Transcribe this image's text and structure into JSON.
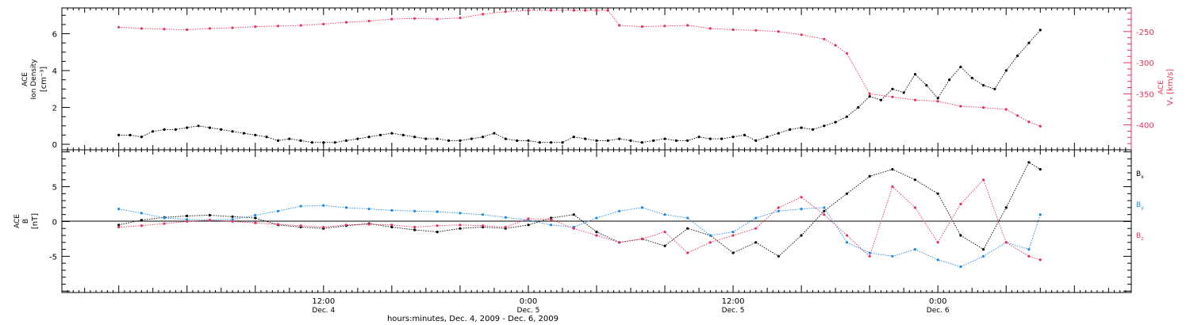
{
  "colors": {
    "black": "#000000",
    "red": "#e8315b",
    "blue": "#1e88e5"
  },
  "chart_data": [
    {
      "type": "scatter",
      "panel": "top",
      "left_axis": {
        "label_lines": [
          "ACE",
          "Ion Density",
          "[cm⁻³]"
        ],
        "ticks": [
          "0",
          "2",
          "4",
          "6"
        ],
        "ylim": [
          -0.3,
          7.4
        ]
      },
      "right_axis": {
        "label_lines": [
          "ACE",
          "Vₓ [km/s]"
        ],
        "ticks": [
          "-250",
          "-300",
          "-350",
          "-400"
        ],
        "ylim": [
          -440,
          -212
        ]
      },
      "series": [
        {
          "color": "#000000",
          "axis": "left",
          "x": [
            0,
            2,
            4,
            6,
            8,
            10,
            12,
            14,
            16,
            18,
            20,
            22,
            24,
            26,
            28,
            30,
            32,
            34,
            36,
            38,
            40,
            42,
            44,
            46,
            48,
            50,
            52,
            54,
            56,
            58,
            60,
            62,
            64,
            66,
            68,
            70,
            72,
            74,
            76,
            78,
            80,
            82,
            84,
            86,
            88,
            90,
            92,
            94,
            96,
            98,
            100,
            102,
            104,
            106,
            108,
            110,
            112,
            114,
            116,
            118,
            120,
            122,
            124,
            126,
            128,
            130,
            132,
            134,
            136,
            138,
            140,
            142,
            144,
            146,
            148,
            150,
            152,
            154,
            156,
            158,
            160,
            162
          ],
          "y": [
            0.5,
            0.5,
            0.4,
            0.7,
            0.8,
            0.8,
            0.9,
            1.0,
            0.9,
            0.8,
            0.7,
            0.6,
            0.5,
            0.4,
            0.2,
            0.3,
            0.2,
            0.1,
            0.1,
            0.1,
            0.2,
            0.3,
            0.4,
            0.5,
            0.6,
            0.5,
            0.4,
            0.3,
            0.3,
            0.2,
            0.2,
            0.3,
            0.4,
            0.6,
            0.3,
            0.2,
            0.2,
            0.1,
            0.1,
            0.1,
            0.4,
            0.3,
            0.2,
            0.2,
            0.3,
            0.2,
            0.1,
            0.2,
            0.3,
            0.2,
            0.2,
            0.4,
            0.3,
            0.3,
            0.4,
            0.5,
            0.2,
            0.4,
            0.6,
            0.8,
            0.9,
            0.8,
            1.0,
            1.2,
            1.5,
            2.0,
            2.6,
            2.4,
            3.0,
            2.8,
            3.8,
            3.2,
            2.5,
            3.5,
            4.2,
            3.6,
            3.2,
            3.0,
            4.0,
            4.8,
            5.5,
            6.2
          ]
        },
        {
          "color": "#e8315b",
          "axis": "right",
          "x": [
            0,
            4,
            8,
            12,
            16,
            20,
            24,
            28,
            32,
            36,
            40,
            44,
            48,
            52,
            56,
            60,
            64,
            68,
            72,
            76,
            80,
            82,
            84,
            86,
            88,
            92,
            96,
            100,
            104,
            108,
            112,
            116,
            120,
            124,
            126,
            128,
            132,
            136,
            140,
            144,
            148,
            152,
            156,
            158,
            160,
            162
          ],
          "y": [
            -243,
            -245,
            -246,
            -247,
            -245,
            -244,
            -242,
            -241,
            -240,
            -238,
            -235,
            -233,
            -230,
            -229,
            -230,
            -228,
            -222,
            -218,
            -216,
            -216,
            -216,
            -216,
            -216,
            -216,
            -240,
            -242,
            -241,
            -240,
            -245,
            -247,
            -248,
            -250,
            -255,
            -262,
            -272,
            -285,
            -350,
            -355,
            -360,
            -362,
            -370,
            -372,
            -375,
            -385,
            -395,
            -402
          ]
        }
      ]
    },
    {
      "type": "scatter",
      "panel": "bottom",
      "left_axis": {
        "label_lines": [
          "ACE",
          "B",
          "[nT]"
        ],
        "ticks": [
          "-5",
          "0",
          "5"
        ],
        "ylim": [
          -10.2,
          10.3
        ]
      },
      "series": [
        {
          "name": "Bx",
          "color": "#000000",
          "x": [
            0,
            4,
            8,
            12,
            16,
            20,
            24,
            28,
            32,
            36,
            40,
            44,
            48,
            52,
            56,
            60,
            64,
            68,
            72,
            76,
            80,
            84,
            88,
            92,
            96,
            100,
            104,
            108,
            112,
            116,
            120,
            124,
            128,
            132,
            136,
            140,
            144,
            148,
            152,
            156,
            160,
            162
          ],
          "y": [
            -0.5,
            0.2,
            0.6,
            0.8,
            0.9,
            0.7,
            0.5,
            -0.5,
            -0.8,
            -1.0,
            -0.6,
            -0.3,
            -0.8,
            -1.2,
            -1.5,
            -1.0,
            -0.8,
            -1.0,
            -0.5,
            0.5,
            1.0,
            -1.5,
            -3.0,
            -2.5,
            -3.5,
            -1.0,
            -2.0,
            -4.5,
            -3.0,
            -5.0,
            -2.0,
            1.5,
            4.0,
            6.5,
            7.5,
            6.0,
            4.0,
            -2.0,
            -4.0,
            2.0,
            8.5,
            7.5
          ]
        },
        {
          "name": "By",
          "color": "#1e88e5",
          "x": [
            0,
            4,
            8,
            12,
            16,
            20,
            24,
            28,
            32,
            36,
            40,
            44,
            48,
            52,
            56,
            60,
            64,
            68,
            72,
            76,
            80,
            84,
            88,
            92,
            96,
            100,
            104,
            108,
            112,
            116,
            120,
            124,
            128,
            132,
            136,
            140,
            144,
            148,
            152,
            156,
            160,
            162
          ],
          "y": [
            1.8,
            1.2,
            0.5,
            0.3,
            0.2,
            0.3,
            0.9,
            1.5,
            2.2,
            2.3,
            2.0,
            1.8,
            1.6,
            1.5,
            1.4,
            1.2,
            1.0,
            0.6,
            0.2,
            -0.5,
            -0.8,
            0.5,
            1.5,
            2.0,
            1.0,
            0.5,
            -2.0,
            -1.5,
            0.5,
            1.5,
            1.8,
            2.0,
            -3.0,
            -4.5,
            -5.0,
            -4.0,
            -5.5,
            -6.5,
            -5.0,
            -3.0,
            -4.0,
            1.0
          ]
        },
        {
          "name": "Bz",
          "color": "#e8315b",
          "x": [
            0,
            4,
            8,
            12,
            16,
            20,
            24,
            28,
            32,
            36,
            40,
            44,
            48,
            52,
            56,
            60,
            64,
            68,
            72,
            76,
            80,
            84,
            88,
            92,
            96,
            100,
            104,
            108,
            112,
            116,
            120,
            124,
            128,
            132,
            136,
            140,
            144,
            148,
            152,
            156,
            160,
            162
          ],
          "y": [
            -0.8,
            -0.6,
            -0.3,
            0.0,
            0.2,
            0.0,
            -0.2,
            -0.4,
            -0.6,
            -0.8,
            -0.5,
            -0.4,
            -0.5,
            -0.8,
            -0.6,
            -0.5,
            -0.6,
            -0.8,
            0.4,
            0.3,
            -1.0,
            -2.0,
            -3.0,
            -2.5,
            -1.5,
            -4.5,
            -3.0,
            -2.0,
            -1.0,
            2.0,
            3.5,
            1.0,
            -2.0,
            -5.0,
            5.0,
            2.0,
            -3.0,
            2.5,
            6.0,
            -3.0,
            -5.0,
            -5.5
          ]
        }
      ]
    }
  ],
  "x_axis": {
    "range_hours": [
      -10,
      178
    ],
    "major_ticks": [
      {
        "hour": 36,
        "time": "12:00",
        "date": "Dec. 4"
      },
      {
        "hour": 72,
        "time": "0:00",
        "date": "Dec. 5"
      },
      {
        "hour": 108,
        "time": "12:00",
        "date": "Dec. 5"
      },
      {
        "hour": 144,
        "time": "0:00",
        "date": "Dec. 6"
      }
    ],
    "title": "hours:minutes, Dec.  4, 2009 - Dec.  6, 2009"
  },
  "legend": {
    "bx": {
      "main": "B",
      "sub": "x"
    },
    "by": {
      "main": "B",
      "sub": "y"
    },
    "bz": {
      "main": "B",
      "sub": "z"
    }
  }
}
